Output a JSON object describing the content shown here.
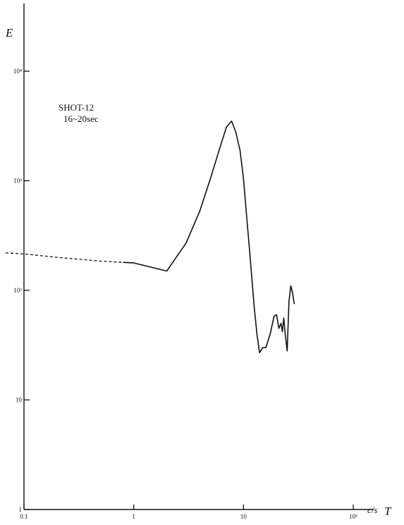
{
  "chart_data": {
    "type": "line",
    "title": "",
    "xlabel": "T",
    "x_unit": "c/s",
    "ylabel": "E",
    "xscale": "log",
    "yscale": "log",
    "xlim": [
      0.1,
      100
    ],
    "ylim": [
      1,
      100000
    ],
    "grid": false,
    "legend": "none",
    "annotation": [
      "SHOT-12",
      "16~20sec"
    ],
    "x_ticks": [
      {
        "value": 0.1,
        "label": "0.1"
      },
      {
        "value": 1,
        "label": "1"
      },
      {
        "value": 10,
        "label": "10"
      },
      {
        "value": 100,
        "label": "10²"
      }
    ],
    "y_ticks": [
      {
        "value": 1,
        "label": "1"
      },
      {
        "value": 10,
        "label": "10"
      },
      {
        "value": 100,
        "label": "10²"
      },
      {
        "value": 1000,
        "label": "10³"
      },
      {
        "value": 10000,
        "label": "10⁴"
      }
    ],
    "series": [
      {
        "style": "dashed",
        "x": [
          0.08,
          0.1,
          0.2,
          0.5,
          0.8
        ],
        "y": [
          220,
          215,
          200,
          185,
          180
        ]
      },
      {
        "style": "solid",
        "x": [
          0.8,
          1.0,
          2.0,
          3.0,
          4.0,
          5.0,
          6.0,
          7.0,
          7.8,
          8.5,
          9.3,
          10.0,
          10.6,
          11.5,
          12.5,
          13.3,
          14.0,
          15.0,
          16.0,
          17.5,
          19.0,
          20.0,
          21.0,
          22.0,
          22.6,
          23.3,
          24.0,
          25.0,
          26.0,
          27.0,
          28.0,
          29.0
        ],
        "y": [
          180,
          178,
          150,
          270,
          530,
          1050,
          1900,
          3100,
          3500,
          2800,
          1900,
          1050,
          520,
          200,
          72,
          39,
          27,
          30,
          30,
          40,
          58,
          60,
          45,
          50,
          42,
          56,
          40,
          28,
          80,
          110,
          95,
          75
        ]
      }
    ]
  }
}
